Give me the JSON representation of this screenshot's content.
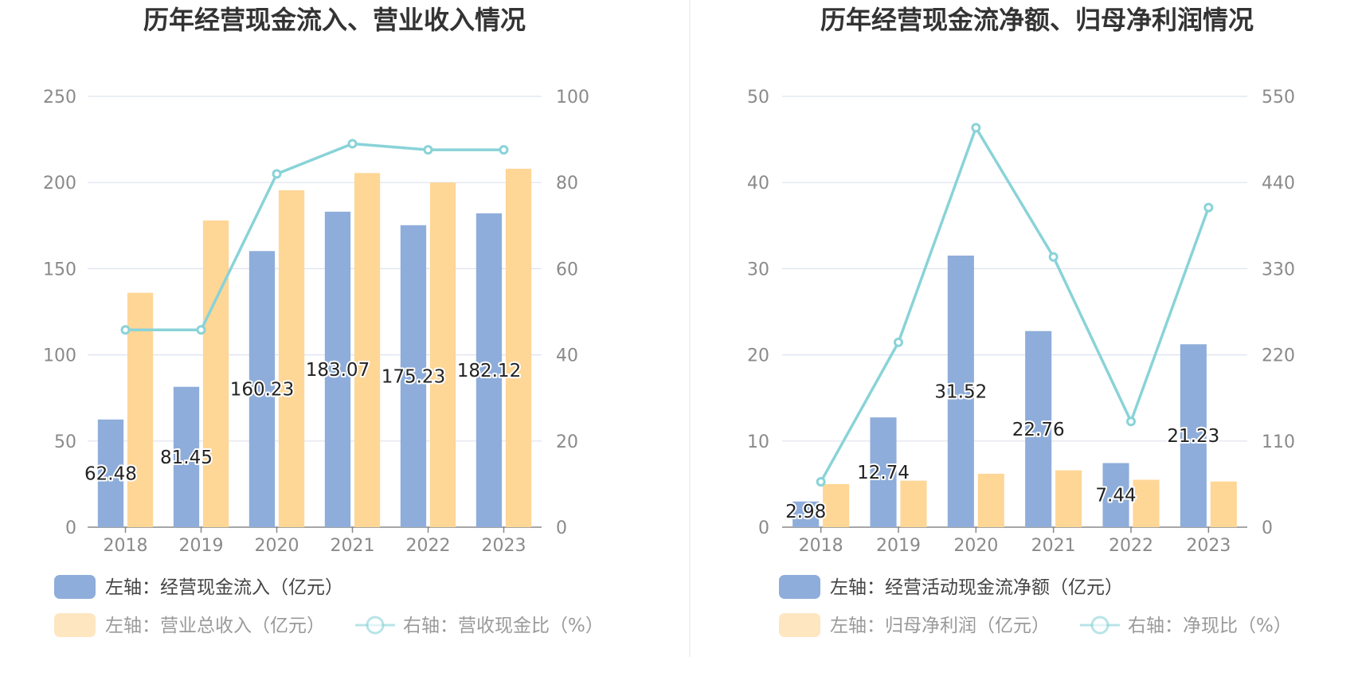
{
  "colors": {
    "bar_primary": "#8eadda",
    "bar_secondary": "#fed696",
    "line": "#89d3d8",
    "grid": "#dde3ef",
    "axis": "#888888",
    "divider": "#eeeeee"
  },
  "chart_data": [
    {
      "type": "bar",
      "title": "历年经营现金流入、营业收入情况",
      "categories": [
        "2018",
        "2019",
        "2020",
        "2021",
        "2022",
        "2023"
      ],
      "y_left": {
        "min": 0,
        "max": 250,
        "ticks": [
          "0",
          "50",
          "100",
          "150",
          "200",
          "250"
        ]
      },
      "y_right": {
        "min": 0,
        "max": 100,
        "ticks": [
          "0",
          "20",
          "40",
          "60",
          "80",
          "100"
        ]
      },
      "series": [
        {
          "name": "左轴：经营现金流入（亿元）",
          "kind": "bar",
          "axis": "left",
          "values": [
            62.48,
            81.45,
            160.23,
            183.07,
            175.23,
            182.12
          ],
          "labels": [
            "62.48",
            "81.45",
            "160.23",
            "183.07",
            "175.23",
            "182.12"
          ]
        },
        {
          "name": "左轴：营业总收入（亿元）",
          "kind": "bar",
          "axis": "left",
          "values": [
            136,
            178,
            195.5,
            205.5,
            200,
            208
          ]
        },
        {
          "name": "右轴：营收现金比（%）",
          "kind": "line",
          "axis": "right",
          "values": [
            45.8,
            45.8,
            82,
            89,
            87.6,
            87.6
          ]
        }
      ]
    },
    {
      "type": "bar",
      "title": "历年经营现金流净额、归母净利润情况",
      "categories": [
        "2018",
        "2019",
        "2020",
        "2021",
        "2022",
        "2023"
      ],
      "y_left": {
        "min": 0,
        "max": 50,
        "ticks": [
          "0",
          "10",
          "20",
          "30",
          "40",
          "50"
        ]
      },
      "y_right": {
        "min": 0,
        "max": 550,
        "ticks": [
          "0",
          "110",
          "220",
          "330",
          "440",
          "550"
        ]
      },
      "series": [
        {
          "name": "左轴：经营活动现金流净额（亿元）",
          "kind": "bar",
          "axis": "left",
          "values": [
            2.98,
            12.74,
            31.52,
            22.76,
            7.44,
            21.23
          ],
          "labels": [
            "2.98",
            "12.74",
            "31.52",
            "22.76",
            "7.44",
            "21.23"
          ]
        },
        {
          "name": "左轴：归母净利润（亿元）",
          "kind": "bar",
          "axis": "left",
          "values": [
            5.0,
            5.4,
            6.2,
            6.6,
            5.5,
            5.3
          ]
        },
        {
          "name": "右轴：净现比（%）",
          "kind": "line",
          "axis": "right",
          "values": [
            58,
            236,
            510,
            345,
            135,
            408
          ]
        }
      ]
    }
  ]
}
